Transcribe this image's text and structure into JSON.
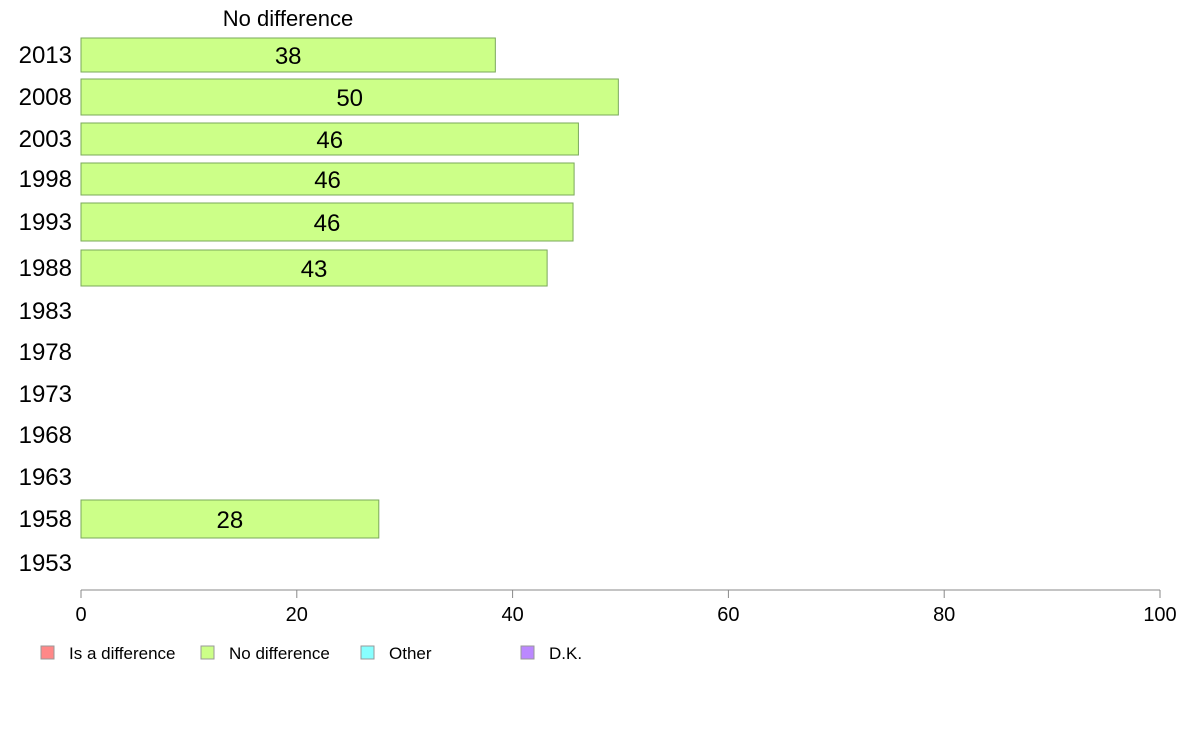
{
  "chart_data": {
    "type": "bar",
    "orientation": "horizontal",
    "series_title": "No difference",
    "categories": [
      "2013",
      "2008",
      "2003",
      "1998",
      "1993",
      "1988",
      "1983",
      "1978",
      "1973",
      "1968",
      "1963",
      "1958",
      "1953"
    ],
    "series": [
      {
        "name": "No difference",
        "color": "#ccff88",
        "values": [
          38.4,
          49.8,
          46.1,
          45.7,
          45.6,
          43.2,
          null,
          null,
          null,
          null,
          null,
          27.6,
          null
        ],
        "labels": [
          "38",
          "50",
          "46",
          "46",
          "46",
          "43",
          "",
          "",
          "",
          "",
          "",
          "28",
          ""
        ]
      }
    ],
    "xlim": [
      0,
      100
    ],
    "xticks": [
      0,
      20,
      40,
      60,
      80,
      100
    ],
    "grid": false,
    "legend": {
      "placement": "bottom-left",
      "items": [
        {
          "label": "Is a difference",
          "color": "#ff8888"
        },
        {
          "label": "No difference",
          "color": "#ccff88"
        },
        {
          "label": "Other",
          "color": "#88ffff"
        },
        {
          "label": "D.K.",
          "color": "#bb88ff"
        }
      ]
    },
    "colors": {
      "bar_stroke": "#7aa85a",
      "axis": "#888888"
    }
  }
}
